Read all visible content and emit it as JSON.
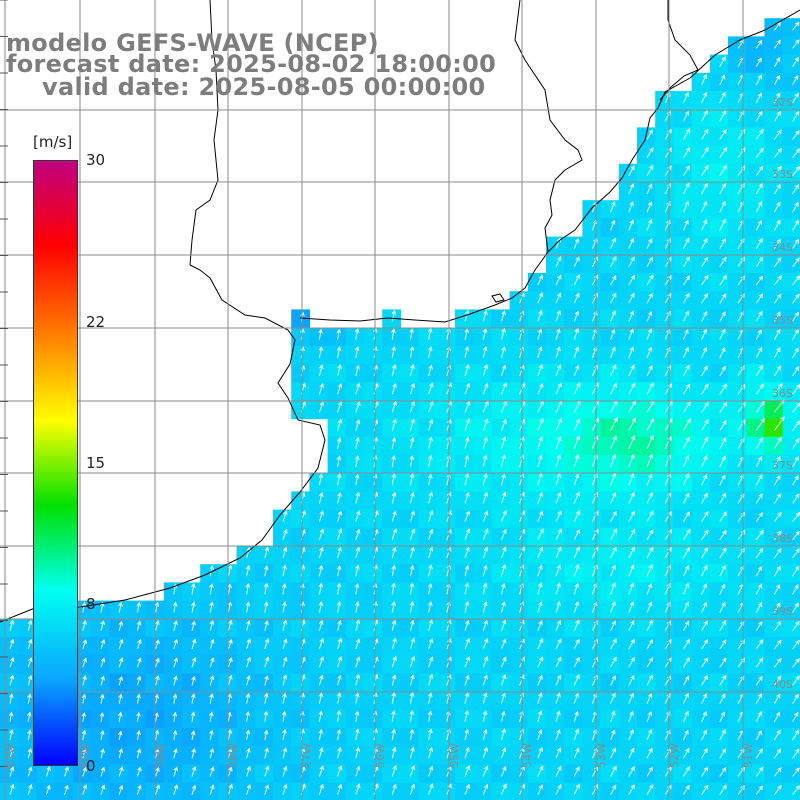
{
  "title": {
    "line1": "modelo GEFS-WAVE (NCEP)",
    "line2": "forecast date: 2025-08-02 18:00:00",
    "line3": "valid date: 2025-08-05 00:00:00"
  },
  "colorbar": {
    "unit": "[m/s]",
    "min": 0,
    "max": 30,
    "ticks": [
      "30",
      "22",
      "15",
      "8",
      "0"
    ],
    "tick_values": [
      30,
      22,
      15,
      8,
      0
    ],
    "colors": [
      "#0000ff",
      "#0aa4ff",
      "#00fff0",
      "#00e000",
      "#ffff00",
      "#ff8000",
      "#ff0000",
      "#c00080"
    ]
  },
  "map": {
    "lat_labels": [
      "32S",
      "33S",
      "34S",
      "35S",
      "36S",
      "37S",
      "38S",
      "39S",
      "40S"
    ],
    "lon_labels": [
      "61W",
      "60W",
      "59W",
      "58W",
      "57W",
      "56W",
      "55W",
      "54W",
      "53W",
      "52W",
      "51W"
    ],
    "land_color": "#ffffff",
    "coast_color": "#000000",
    "grid_color": "#8a8a8a",
    "arrow_color": "#ffffff",
    "wind_direction": "southerly (arrows pointing north / north-east)"
  }
}
